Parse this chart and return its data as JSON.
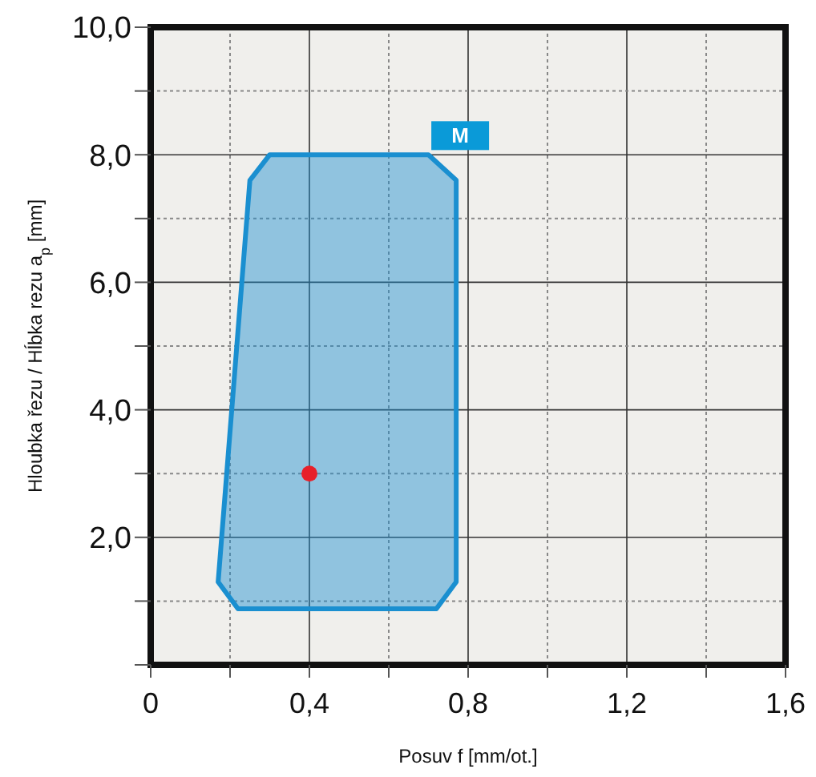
{
  "chart_data": {
    "type": "area",
    "xlabel": "Posuv f [mm/ot.]",
    "ylabel": "Hloubka řezu / Hĺbka rezu a$_{p}$ [mm]",
    "xlim": [
      0,
      1.6
    ],
    "ylim": [
      0,
      10
    ],
    "xticks": [
      {
        "value": 0,
        "label": "0"
      },
      {
        "value": 0.2,
        "label": null
      },
      {
        "value": 0.4,
        "label": "0,4"
      },
      {
        "value": 0.6,
        "label": null
      },
      {
        "value": 0.8,
        "label": "0,8"
      },
      {
        "value": 1.0,
        "label": null
      },
      {
        "value": 1.2,
        "label": "1,2"
      },
      {
        "value": 1.4,
        "label": null
      },
      {
        "value": 1.6,
        "label": "1,6"
      }
    ],
    "yticks": [
      {
        "value": 0,
        "label": null
      },
      {
        "value": 1,
        "label": null
      },
      {
        "value": 2,
        "label": "2,0"
      },
      {
        "value": 3,
        "label": null
      },
      {
        "value": 4,
        "label": "4,0"
      },
      {
        "value": 5,
        "label": null
      },
      {
        "value": 6,
        "label": "6,0"
      },
      {
        "value": 7,
        "label": null
      },
      {
        "value": 8,
        "label": "8,0"
      },
      {
        "value": 9,
        "label": null
      },
      {
        "value": 10,
        "label": "10,0"
      }
    ],
    "grid": true,
    "series": [
      {
        "color": "#1a8fd0",
        "x": [
          0.25,
          0.3,
          0.7,
          0.77,
          0.77,
          0.72,
          0.22,
          0.17
        ],
        "values": [
          7.6,
          8.0,
          8.0,
          7.6,
          1.3,
          0.88,
          0.88,
          1.3
        ]
      },
      {
        "type": "scatter",
        "color": "#e8202a",
        "marker": "circle",
        "x": [
          0.4
        ],
        "values": [
          3.0
        ]
      }
    ],
    "annotations": [
      {
        "text": "M",
        "x": 0.78,
        "y": 8.3
      }
    ]
  }
}
